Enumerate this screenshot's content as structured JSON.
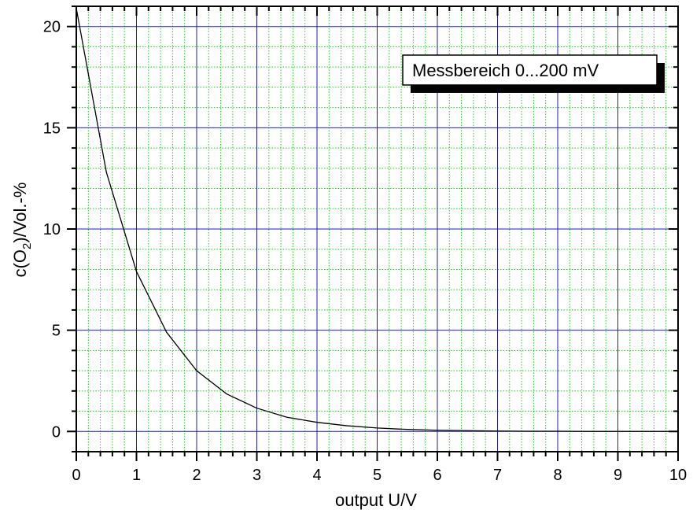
{
  "chart_data": {
    "type": "line",
    "xlabel": "output U/V",
    "ylabel_parts": {
      "before": "c(O",
      "subscript": "2",
      "after": ")/Vol.-%"
    },
    "xlim": [
      0,
      10
    ],
    "ylim": [
      -1,
      21
    ],
    "x_ticks": [
      0,
      1,
      2,
      3,
      4,
      5,
      6,
      7,
      8,
      9,
      10
    ],
    "y_ticks": [
      0,
      5,
      10,
      15,
      20
    ],
    "x_minor_step": 0.2,
    "y_minor_step": 1,
    "grid": {
      "major": true,
      "minor": true,
      "major_color": "#1f1fa8",
      "minor_color": "#22cc22"
    },
    "legend": {
      "text": "Messbereich 0...200 mV",
      "placement": "top-right"
    },
    "series": [
      {
        "color": "#000000",
        "x": [
          0,
          0.5,
          1,
          1.5,
          2,
          2.5,
          3,
          3.5,
          4,
          4.5,
          5,
          5.5,
          6,
          6.5,
          7,
          7.5,
          8,
          8.5,
          9,
          9.5,
          10
        ],
        "y": [
          20.9,
          12.8,
          7.9,
          4.9,
          3.0,
          1.85,
          1.15,
          0.7,
          0.45,
          0.28,
          0.17,
          0.1,
          0.06,
          0.04,
          0.02,
          0.01,
          0.01,
          0,
          0,
          0,
          0
        ]
      }
    ]
  }
}
